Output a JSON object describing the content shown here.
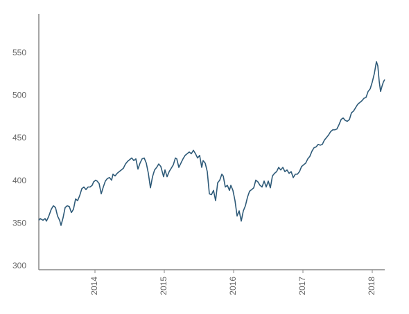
{
  "chart_data": {
    "type": "line",
    "x": [
      2013.19,
      2013.21,
      2013.25,
      2013.28,
      2013.3,
      2013.33,
      2013.37,
      2013.4,
      2013.43,
      2013.46,
      2013.49,
      2013.51,
      2013.54,
      2013.57,
      2013.6,
      2013.63,
      2013.66,
      2013.69,
      2013.72,
      2013.75,
      2013.78,
      2013.81,
      2013.84,
      2013.87,
      2013.9,
      2013.93,
      2013.96,
      2013.98,
      2014.01,
      2014.03,
      2014.06,
      2014.09,
      2014.12,
      2014.15,
      2014.18,
      2014.21,
      2014.24,
      2014.26,
      2014.29,
      2014.32,
      2014.35,
      2014.38,
      2014.41,
      2014.44,
      2014.47,
      2014.5,
      2014.53,
      2014.56,
      2014.59,
      2014.62,
      2014.65,
      2014.68,
      2014.71,
      2014.74,
      2014.77,
      2014.8,
      2014.83,
      2014.86,
      2014.89,
      2014.92,
      2014.95,
      2014.97,
      2014.99,
      2015.01,
      2015.04,
      2015.07,
      2015.1,
      2015.13,
      2015.16,
      2015.18,
      2015.21,
      2015.24,
      2015.27,
      2015.3,
      2015.33,
      2015.36,
      2015.39,
      2015.42,
      2015.45,
      2015.48,
      2015.51,
      2015.54,
      2015.56,
      2015.59,
      2015.62,
      2015.65,
      2015.68,
      2015.71,
      2015.74,
      2015.77,
      2015.8,
      2015.83,
      2015.85,
      2015.88,
      2015.91,
      2015.94,
      2015.96,
      2015.99,
      2016.02,
      2016.05,
      2016.08,
      2016.11,
      2016.14,
      2016.17,
      2016.2,
      2016.23,
      2016.26,
      2016.29,
      2016.32,
      2016.35,
      2016.38,
      2016.41,
      2016.44,
      2016.47,
      2016.5,
      2016.53,
      2016.56,
      2016.59,
      2016.62,
      2016.65,
      2016.68,
      2016.71,
      2016.74,
      2016.77,
      2016.8,
      2016.83,
      2016.86,
      2016.89,
      2016.92,
      2016.95,
      2016.98,
      2017.01,
      2017.04,
      2017.07,
      2017.1,
      2017.13,
      2017.16,
      2017.19,
      2017.22,
      2017.25,
      2017.28,
      2017.31,
      2017.34,
      2017.37,
      2017.4,
      2017.43,
      2017.46,
      2017.49,
      2017.52,
      2017.55,
      2017.58,
      2017.61,
      2017.64,
      2017.67,
      2017.7,
      2017.73,
      2017.76,
      2017.79,
      2017.82,
      2017.85,
      2017.88,
      2017.91,
      2017.94,
      2017.97,
      2018.0,
      2018.03,
      2018.06,
      2018.08,
      2018.1,
      2018.12,
      2018.14,
      2018.16,
      2018.18
    ],
    "values": [
      354,
      356,
      354,
      356,
      353,
      358,
      367,
      371,
      369,
      359,
      354,
      348,
      357,
      369,
      371,
      370,
      363,
      367,
      379,
      377,
      383,
      391,
      393,
      390,
      393,
      393,
      395,
      399,
      401,
      400,
      397,
      385,
      393,
      400,
      403,
      404,
      401,
      408,
      406,
      409,
      411,
      413,
      415,
      420,
      423,
      425,
      427,
      424,
      426,
      414,
      421,
      426,
      427,
      421,
      409,
      392,
      405,
      413,
      416,
      420,
      417,
      411,
      405,
      413,
      405,
      411,
      415,
      419,
      427,
      426,
      416,
      421,
      426,
      430,
      432,
      434,
      432,
      436,
      432,
      427,
      430,
      416,
      424,
      421,
      411,
      385,
      384,
      389,
      377,
      398,
      401,
      408,
      406,
      393,
      395,
      389,
      395,
      389,
      377,
      359,
      365,
      353,
      365,
      371,
      381,
      388,
      390,
      392,
      401,
      399,
      395,
      393,
      400,
      393,
      400,
      392,
      406,
      409,
      411,
      416,
      413,
      416,
      411,
      413,
      409,
      411,
      404,
      408,
      408,
      411,
      417,
      419,
      421,
      426,
      429,
      435,
      439,
      440,
      443,
      442,
      443,
      448,
      451,
      454,
      458,
      460,
      460,
      461,
      466,
      472,
      474,
      471,
      470,
      472,
      480,
      482,
      486,
      490,
      492,
      494,
      497,
      498,
      505,
      508,
      516,
      526,
      540,
      535,
      517,
      505,
      511,
      516,
      519
    ],
    "color": "#2e5a78",
    "xlim": [
      2013.19,
      2018.18
    ],
    "xticks": [
      2014,
      2015,
      2016,
      2017,
      2018
    ],
    "ylim": [
      296,
      596
    ],
    "yticks": [
      300,
      350,
      400,
      450,
      500,
      550
    ]
  }
}
